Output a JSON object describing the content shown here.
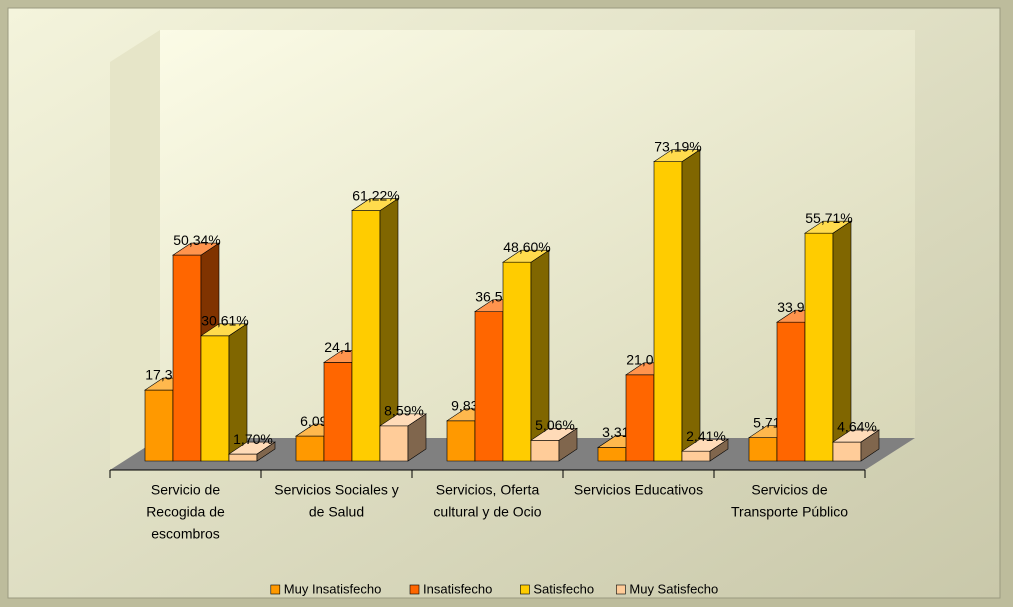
{
  "chart_data": {
    "type": "bar3d",
    "categories": [
      [
        "Servicio de",
        "Recogida de",
        "escombros"
      ],
      [
        "Servicios Sociales y",
        "de Salud"
      ],
      [
        "Servicios, Oferta",
        "cultural y de Ocio"
      ],
      [
        "Servicios Educativos"
      ],
      [
        "Servicios de",
        "Transporte Público"
      ]
    ],
    "series": [
      {
        "name": "Muy Insatisfecho",
        "color": "#FF9900",
        "values": [
          17.35,
          6.09,
          9.83,
          3.31,
          5.71
        ],
        "value_labels": [
          "17,35%",
          "6,09%",
          "9,83%",
          "3,31%",
          "5,71%"
        ]
      },
      {
        "name": "Insatisfecho",
        "color": "#FF6600",
        "values": [
          50.34,
          24.1,
          36.52,
          21.08,
          33.93
        ],
        "value_labels": [
          "50,34%",
          "24,10%",
          "36,52%",
          "21,08%",
          "33,93%"
        ]
      },
      {
        "name": "Satisfecho",
        "color": "#FFCC00",
        "values": [
          30.61,
          61.22,
          48.6,
          73.19,
          55.71
        ],
        "value_labels": [
          "30,61%",
          "61,22%",
          "48,60%",
          "73,19%",
          "55,71%"
        ]
      },
      {
        "name": "Muy Satisfecho",
        "color": "#FFCC99",
        "values": [
          1.7,
          8.59,
          5.06,
          2.41,
          4.64
        ],
        "value_labels": [
          "1,70%",
          "8,59%",
          "5,06%",
          "2,41%",
          "4,64%"
        ]
      }
    ],
    "legend": "bottom"
  }
}
